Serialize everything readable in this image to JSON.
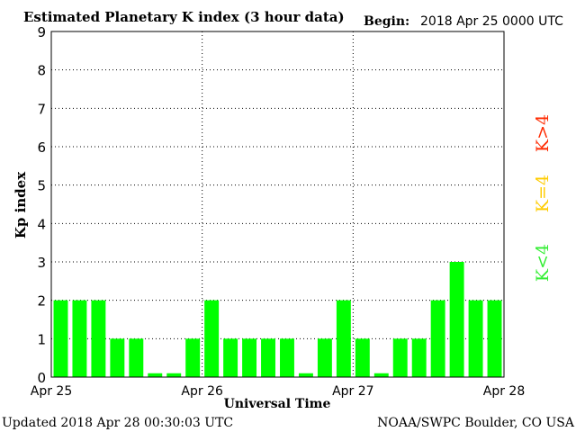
{
  "header": {
    "title": "Estimated Planetary K index (3 hour data)",
    "begin_label": "Begin:",
    "begin_value": "2018 Apr 25 0000 UTC"
  },
  "footer": {
    "updated": "Updated 2018 Apr 28 00:30:03 UTC",
    "credit": "NOAA/SWPC Boulder, CO USA"
  },
  "legend": {
    "high": "K>4",
    "equal": "K=4",
    "low": "K<4"
  },
  "colors": {
    "bar": "#00ff00",
    "legend_high": "#ff2a00",
    "legend_equal": "#ffcc00",
    "legend_low": "#33ee33"
  },
  "chart_data": {
    "type": "bar",
    "title": "Estimated Planetary K index (3 hour data)",
    "xlabel": "Universal Time",
    "ylabel": "Kp index",
    "ylim": [
      0,
      9
    ],
    "yticks": [
      "0",
      "1",
      "2",
      "3",
      "4",
      "5",
      "6",
      "7",
      "8",
      "9"
    ],
    "xticks": [
      "Apr 25",
      "Apr 26",
      "Apr 27",
      "Apr 28"
    ],
    "grid": true,
    "series": [
      {
        "values": [
          2,
          2,
          2,
          1,
          1,
          0.1,
          0.1,
          1,
          2,
          1,
          1,
          1,
          1,
          0.1,
          1,
          2,
          1,
          0.1,
          1,
          1,
          2,
          3,
          2,
          2
        ]
      }
    ]
  }
}
